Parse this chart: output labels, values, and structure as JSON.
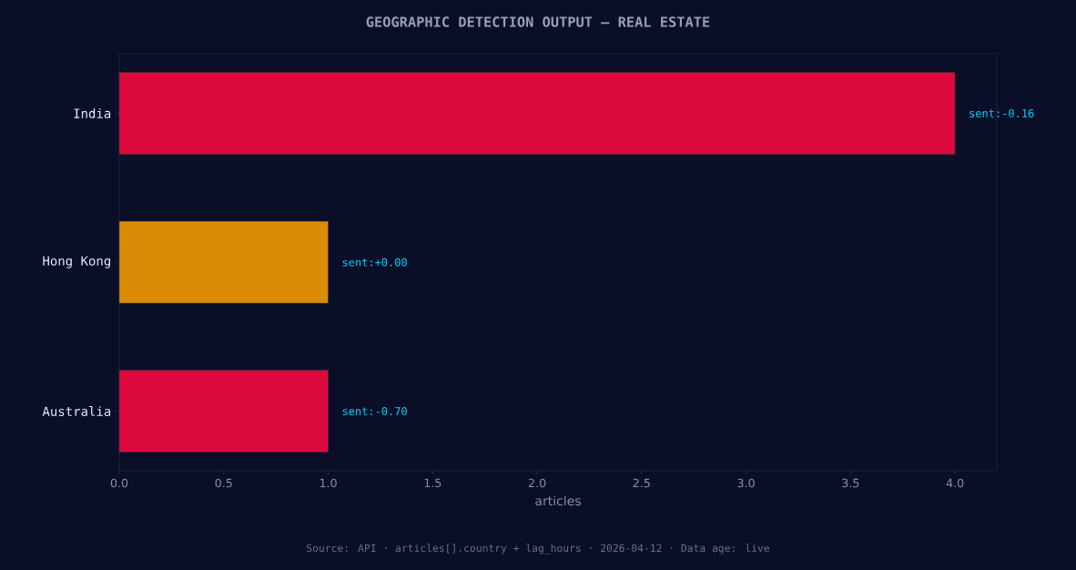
{
  "chart_data": {
    "type": "bar",
    "orientation": "horizontal",
    "title": "GEOGRAPHIC DETECTION OUTPUT — REAL ESTATE",
    "xlabel": "articles",
    "categories": [
      "India",
      "Hong Kong",
      "Australia"
    ],
    "values": [
      4,
      1,
      1
    ],
    "colors": [
      "#dc0a3c",
      "#db8c06",
      "#dc0a3c"
    ],
    "xlim": [
      0,
      4.2
    ],
    "xticks": [
      {
        "value": 0,
        "label": "0.0"
      },
      {
        "value": 0.5,
        "label": "0.5"
      },
      {
        "value": 1,
        "label": "1.0"
      },
      {
        "value": 1.5,
        "label": "1.5"
      },
      {
        "value": 2,
        "label": "2.0"
      },
      {
        "value": 2.5,
        "label": "2.5"
      },
      {
        "value": 3,
        "label": "3.0"
      },
      {
        "value": 3.5,
        "label": "3.5"
      },
      {
        "value": 4,
        "label": "4.0"
      }
    ],
    "annotations": [
      "sent:-0.16",
      "sent:+0.00",
      "sent:-0.70",
      "Source: API · articles[].country + lag_hours · 2026-04-12 · Data age: live"
    ]
  }
}
